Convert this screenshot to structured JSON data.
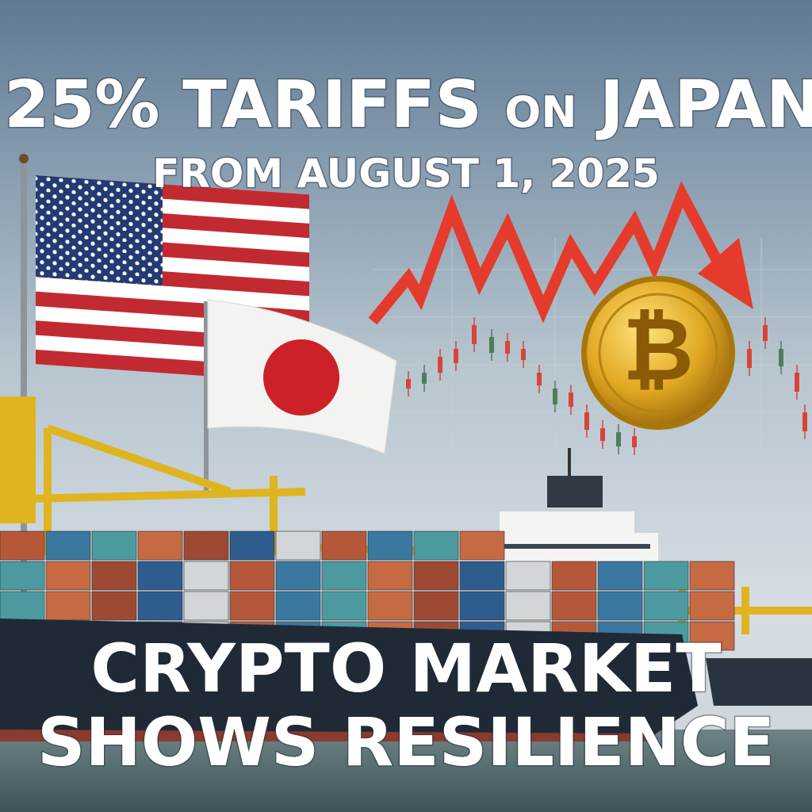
{
  "headline": {
    "line1_a": "25% TARIFFS",
    "line1_b": "ON",
    "line1_c": "JAPAN",
    "line2": "FROM AUGUST 1, 2025"
  },
  "coin": {
    "symbol": "₿"
  },
  "footer": {
    "line1": "CRYPTO MARKET",
    "line2": "SHOWS RESILIENCE"
  }
}
